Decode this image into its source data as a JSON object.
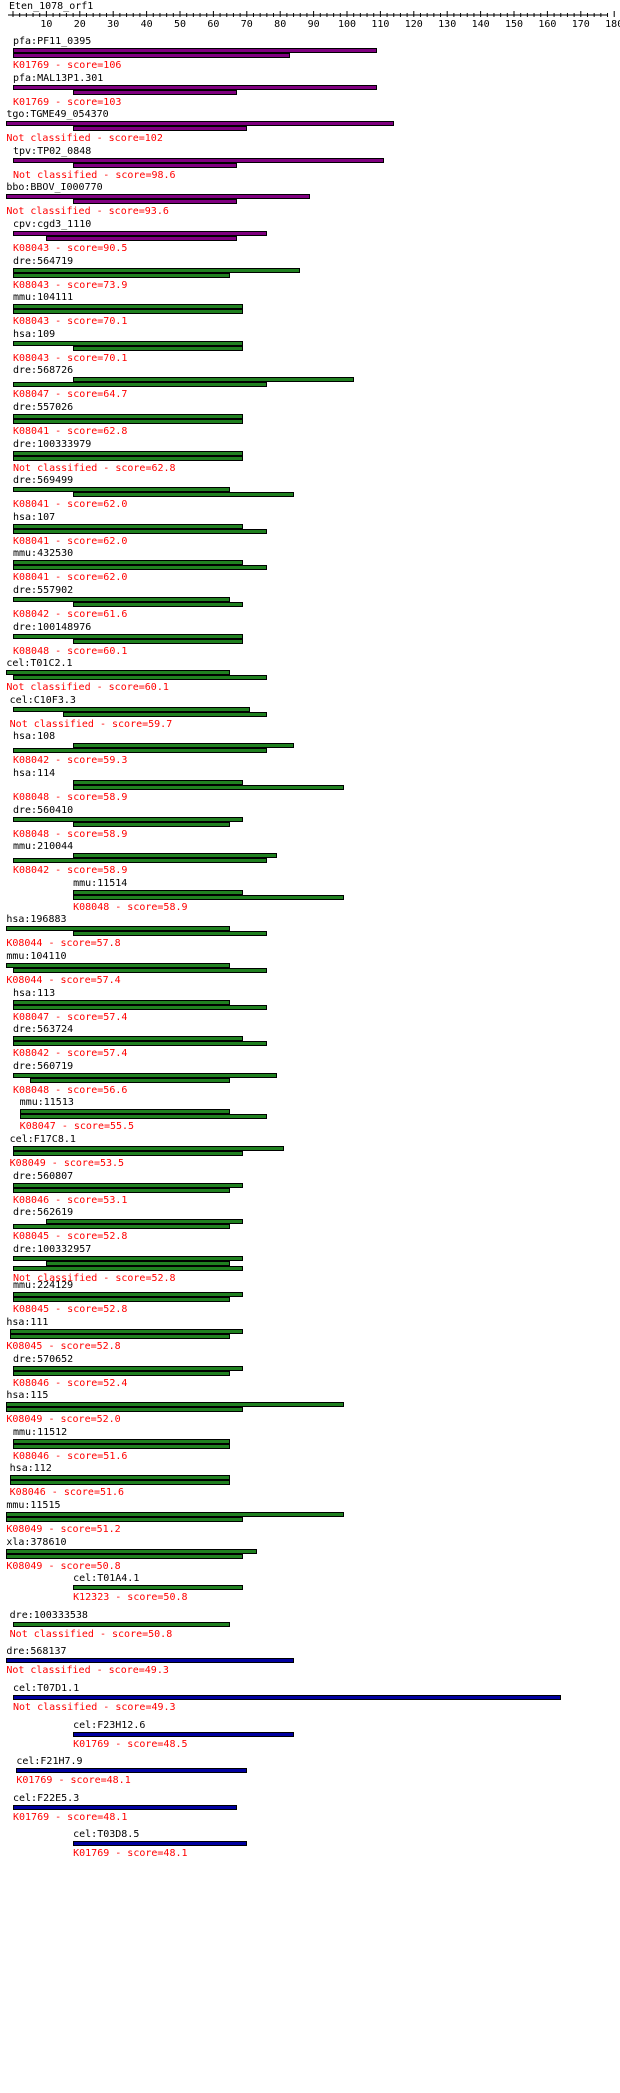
{
  "query": {
    "name": "Eten_1078_orf1"
  },
  "ruler": {
    "ticks": [
      10,
      20,
      30,
      40,
      50,
      60,
      70,
      80,
      90,
      100,
      110,
      120,
      130,
      140,
      150,
      160,
      170,
      180
    ]
  },
  "colors": {
    "purple": "#800080",
    "green": "#208020",
    "blue": "#0000a0",
    "score_text": "#ff0000",
    "label_text": "#000000"
  },
  "hits": [
    {
      "label": "pfa:PF11_0395",
      "score": "K01769 - score=106",
      "color": "purple",
      "bars": [
        [
          0,
          109
        ],
        [
          0,
          83
        ]
      ],
      "lx": 0
    },
    {
      "label": "pfa:MAL13P1.301",
      "score": "K01769 - score=103",
      "color": "purple",
      "bars": [
        [
          0,
          109
        ],
        [
          18,
          67
        ]
      ],
      "lx": 0
    },
    {
      "label": "tgo:TGME49_054370",
      "score": "Not classified - score=102",
      "color": "purple",
      "bars": [
        [
          -2,
          114
        ],
        [
          18,
          70
        ]
      ],
      "lx": -2
    },
    {
      "label": "tpv:TP02_0848",
      "score": "Not classified - score=98.6",
      "color": "purple",
      "bars": [
        [
          0,
          111
        ],
        [
          18,
          67
        ]
      ],
      "lx": 0
    },
    {
      "label": "bbo:BBOV_I000770",
      "score": "Not classified - score=93.6",
      "color": "purple",
      "bars": [
        [
          -2,
          89
        ],
        [
          18,
          67
        ]
      ],
      "lx": -2
    },
    {
      "label": "cpv:cgd3_1110",
      "score": "K08043 - score=90.5",
      "color": "purple",
      "bars": [
        [
          0,
          76
        ],
        [
          10,
          67
        ]
      ],
      "lx": 0
    },
    {
      "label": "dre:564719",
      "score": "K08043 - score=73.9",
      "color": "green",
      "bars": [
        [
          0,
          86
        ],
        [
          0,
          65
        ]
      ],
      "lx": 0
    },
    {
      "label": "mmu:104111",
      "score": "K08043 - score=70.1",
      "color": "green",
      "bars": [
        [
          0,
          69
        ],
        [
          0,
          69
        ]
      ],
      "lx": 0
    },
    {
      "label": "hsa:109",
      "score": "K08043 - score=70.1",
      "color": "green",
      "bars": [
        [
          0,
          69
        ],
        [
          18,
          69
        ]
      ],
      "lx": 0
    },
    {
      "label": "dre:568726",
      "score": "K08047 - score=64.7",
      "color": "green",
      "bars": [
        [
          18,
          102
        ],
        [
          0,
          76
        ]
      ],
      "lx": 0
    },
    {
      "label": "dre:557026",
      "score": "K08041 - score=62.8",
      "color": "green",
      "bars": [
        [
          0,
          69
        ],
        [
          0,
          69
        ]
      ],
      "lx": 0
    },
    {
      "label": "dre:100333979",
      "score": "Not classified - score=62.8",
      "color": "green",
      "bars": [
        [
          0,
          69
        ],
        [
          0,
          69
        ]
      ],
      "lx": 0
    },
    {
      "label": "dre:569499",
      "score": "K08041 - score=62.0",
      "color": "green",
      "bars": [
        [
          0,
          65
        ],
        [
          18,
          84
        ]
      ],
      "lx": 0
    },
    {
      "label": "hsa:107",
      "score": "K08041 - score=62.0",
      "color": "green",
      "bars": [
        [
          0,
          69
        ],
        [
          0,
          76
        ]
      ],
      "lx": 0
    },
    {
      "label": "mmu:432530",
      "score": "K08041 - score=62.0",
      "color": "green",
      "bars": [
        [
          0,
          69
        ],
        [
          0,
          76
        ]
      ],
      "lx": 0
    },
    {
      "label": "dre:557902",
      "score": "K08042 - score=61.6",
      "color": "green",
      "bars": [
        [
          0,
          65
        ],
        [
          18,
          69
        ]
      ],
      "lx": 0
    },
    {
      "label": "dre:100148976",
      "score": "K08048 - score=60.1",
      "color": "green",
      "bars": [
        [
          0,
          69
        ],
        [
          18,
          69
        ]
      ],
      "lx": 0
    },
    {
      "label": "cel:T01C2.1",
      "score": "Not classified - score=60.1",
      "color": "green",
      "bars": [
        [
          -2,
          65
        ],
        [
          0,
          76
        ]
      ],
      "lx": -2
    },
    {
      "label": "cel:C10F3.3",
      "score": "Not classified - score=59.7",
      "color": "green",
      "bars": [
        [
          0,
          71
        ],
        [
          15,
          76
        ]
      ],
      "lx": -1
    },
    {
      "label": "hsa:108",
      "score": "K08042 - score=59.3",
      "color": "green",
      "bars": [
        [
          18,
          84
        ],
        [
          0,
          76
        ]
      ],
      "lx": 0
    },
    {
      "label": "hsa:114",
      "score": "K08048 - score=58.9",
      "color": "green",
      "bars": [
        [
          18,
          69
        ],
        [
          18,
          99
        ]
      ],
      "lx": 0
    },
    {
      "label": "dre:560410",
      "score": "K08048 - score=58.9",
      "color": "green",
      "bars": [
        [
          0,
          69
        ],
        [
          18,
          65
        ]
      ],
      "lx": 0
    },
    {
      "label": "mmu:210044",
      "score": "K08042 - score=58.9",
      "color": "green",
      "bars": [
        [
          18,
          79
        ],
        [
          0,
          76
        ]
      ],
      "lx": 0
    },
    {
      "label": "mmu:11514",
      "score": "K08048 - score=58.9",
      "color": "green",
      "bars": [
        [
          18,
          69
        ],
        [
          18,
          99
        ]
      ],
      "lx": 18
    },
    {
      "label": "hsa:196883",
      "score": "K08044 - score=57.8",
      "color": "green",
      "bars": [
        [
          -2,
          65
        ],
        [
          18,
          76
        ]
      ],
      "lx": -2
    },
    {
      "label": "mmu:104110",
      "score": "K08044 - score=57.4",
      "color": "green",
      "bars": [
        [
          -2,
          65
        ],
        [
          0,
          76
        ]
      ],
      "lx": -2
    },
    {
      "label": "hsa:113",
      "score": "K08047 - score=57.4",
      "color": "green",
      "bars": [
        [
          0,
          65
        ],
        [
          0,
          76
        ]
      ],
      "lx": 0
    },
    {
      "label": "dre:563724",
      "score": "K08042 - score=57.4",
      "color": "green",
      "bars": [
        [
          0,
          69
        ],
        [
          0,
          76
        ]
      ],
      "lx": 0
    },
    {
      "label": "dre:560719",
      "score": "K08048 - score=56.6",
      "color": "green",
      "bars": [
        [
          0,
          79
        ],
        [
          5,
          65
        ]
      ],
      "lx": 0
    },
    {
      "label": "mmu:11513",
      "score": "K08047 - score=55.5",
      "color": "green",
      "bars": [
        [
          2,
          65
        ],
        [
          2,
          76
        ]
      ],
      "lx": 2
    },
    {
      "label": "cel:F17C8.1",
      "score": "K08049 - score=53.5",
      "color": "green",
      "bars": [
        [
          0,
          81
        ],
        [
          0,
          69
        ]
      ],
      "lx": -1
    },
    {
      "label": "dre:560807",
      "score": "K08046 - score=53.1",
      "color": "green",
      "bars": [
        [
          0,
          69
        ],
        [
          0,
          65
        ]
      ],
      "lx": 0
    },
    {
      "label": "dre:562619",
      "score": "K08045 - score=52.8",
      "color": "green",
      "bars": [
        [
          10,
          69
        ],
        [
          0,
          65
        ]
      ],
      "lx": 0
    },
    {
      "label": "dre:100332957",
      "score": "Not classified - score=52.8",
      "color": "green",
      "bars": [
        [
          0,
          69
        ],
        [
          10,
          65
        ],
        [
          0,
          69
        ]
      ],
      "lx": 0
    },
    {
      "label": "mmu:224129",
      "score": "K08045 - score=52.8",
      "color": "green",
      "bars": [
        [
          0,
          69
        ],
        [
          0,
          65
        ]
      ],
      "lx": 0
    },
    {
      "label": "hsa:111",
      "score": "K08045 - score=52.8",
      "color": "green",
      "bars": [
        [
          -1,
          69
        ],
        [
          -1,
          65
        ]
      ],
      "lx": -2
    },
    {
      "label": "dre:570652",
      "score": "K08046 - score=52.4",
      "color": "green",
      "bars": [
        [
          0,
          69
        ],
        [
          0,
          65
        ]
      ],
      "lx": 0
    },
    {
      "label": "hsa:115",
      "score": "K08049 - score=52.0",
      "color": "green",
      "bars": [
        [
          -2,
          99
        ],
        [
          -2,
          69
        ]
      ],
      "lx": -2
    },
    {
      "label": "mmu:11512",
      "score": "K08046 - score=51.6",
      "color": "green",
      "bars": [
        [
          0,
          65
        ],
        [
          0,
          65
        ]
      ],
      "lx": 0
    },
    {
      "label": "hsa:112",
      "score": "K08046 - score=51.6",
      "color": "green",
      "bars": [
        [
          -1,
          65
        ],
        [
          -1,
          65
        ]
      ],
      "lx": -1
    },
    {
      "label": "mmu:11515",
      "score": "K08049 - score=51.2",
      "color": "green",
      "bars": [
        [
          -2,
          99
        ],
        [
          -2,
          69
        ]
      ],
      "lx": -2
    },
    {
      "label": "xla:378610",
      "score": "K08049 - score=50.8",
      "color": "green",
      "bars": [
        [
          -2,
          73
        ],
        [
          -2,
          69
        ]
      ],
      "lx": -2
    },
    {
      "label": "cel:T01A4.1",
      "score": "K12323 - score=50.8",
      "color": "green",
      "bars": [
        [
          18,
          69
        ]
      ],
      "lx": 18
    },
    {
      "label": "dre:100333538",
      "score": "Not classified - score=50.8",
      "color": "green",
      "bars": [
        [
          0,
          65
        ]
      ],
      "lx": -1
    },
    {
      "label": "dre:568137",
      "score": "Not classified - score=49.3",
      "color": "blue",
      "bars": [
        [
          -2,
          84
        ]
      ],
      "lx": -2
    },
    {
      "label": "cel:T07D1.1",
      "score": "Not classified - score=49.3",
      "color": "blue",
      "bars": [
        [
          0,
          164
        ]
      ],
      "lx": 0
    },
    {
      "label": "cel:F23H12.6",
      "score": "K01769 - score=48.5",
      "color": "blue",
      "bars": [
        [
          18,
          84
        ]
      ],
      "lx": 18
    },
    {
      "label": "cel:F21H7.9",
      "score": "K01769 - score=48.1",
      "color": "blue",
      "bars": [
        [
          1,
          70
        ]
      ],
      "lx": 1
    },
    {
      "label": "cel:F22E5.3",
      "score": "K01769 - score=48.1",
      "color": "blue",
      "bars": [
        [
          0,
          67
        ]
      ],
      "lx": 0
    },
    {
      "label": "cel:T03D8.5",
      "score": "K01769 - score=48.1",
      "color": "blue",
      "bars": [
        [
          18,
          70
        ]
      ],
      "lx": 18
    }
  ]
}
